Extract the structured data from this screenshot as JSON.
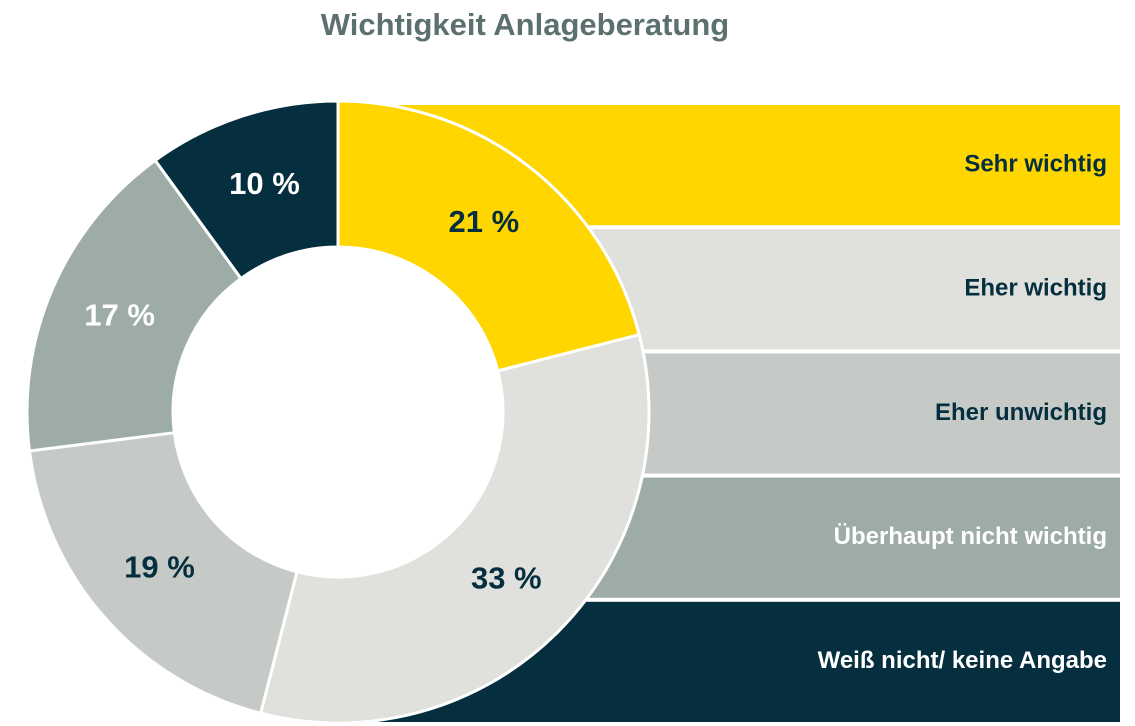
{
  "chart_data": {
    "type": "donut",
    "title": "Wichtigkeit Anlageberatung",
    "categories": [
      "Sehr wichtig",
      "Eher wichtig",
      "Eher unwichtig",
      "Überhaupt nicht wichtig",
      "Weiß nicht/ keine Angabe"
    ],
    "values": [
      21,
      33,
      19,
      17,
      10
    ],
    "value_labels": [
      "21 %",
      "33 %",
      "19 %",
      "17 %",
      "10 %"
    ],
    "colors": [
      "#ffd600",
      "#e0e0dc",
      "#c5cac7",
      "#9eaca8",
      "#052f3e"
    ],
    "label_colors": [
      "#052f3e",
      "#052f3e",
      "#052f3e",
      "#ffffff",
      "#ffffff"
    ]
  }
}
